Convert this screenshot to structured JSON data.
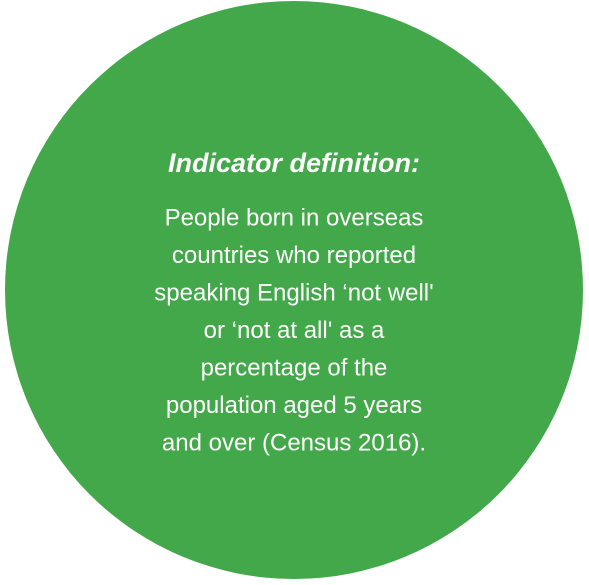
{
  "heading": "Indicator definition:",
  "lines": [
    "People born in overseas",
    "countries who reported",
    "speaking English ‘not well'",
    "or ‘not at all' as a",
    "percentage of the",
    "population aged 5 years",
    "and over (Census 2016)."
  ]
}
